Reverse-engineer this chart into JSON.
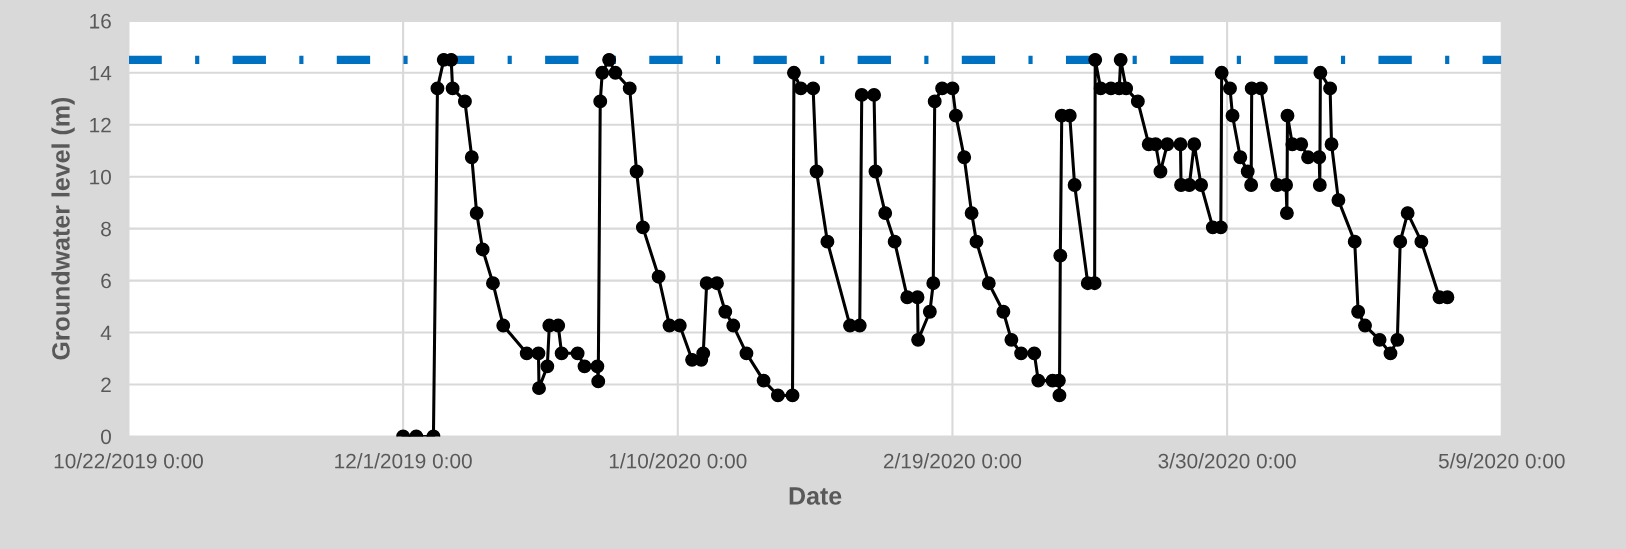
{
  "chart_data": {
    "type": "line",
    "xlabel": "Date",
    "ylabel": "Groundwater level (m)",
    "xlim": [
      "2019-10-22",
      "2020-05-09"
    ],
    "xticks": [
      {
        "value": "2019-10-22",
        "label": "10/22/2019 0:00"
      },
      {
        "value": "2019-12-01",
        "label": "12/1/2019 0:00"
      },
      {
        "value": "2020-01-10",
        "label": "1/10/2020 0:00"
      },
      {
        "value": "2020-02-19",
        "label": "2/19/2020 0:00"
      },
      {
        "value": "2020-03-30",
        "label": "3/30/2020 0:00"
      },
      {
        "value": "2020-05-09",
        "label": "5/9/2020 0:00"
      }
    ],
    "ylim": [
      0,
      16
    ],
    "yticks": [
      0,
      2,
      4,
      6,
      8,
      10,
      12,
      14,
      16
    ],
    "grid": true,
    "marker": "circle",
    "line_style": "solid",
    "ref_lines": [
      {
        "axis": "y",
        "value": 14.5,
        "label": null,
        "color": "#0070c0",
        "line_style": "dashdot"
      }
    ],
    "series": [
      {
        "color": "#000000",
        "x": [
          "2019-12-01T00:00",
          "2019-12-02T22:00",
          "2019-12-05T10:00",
          "2019-12-06T00:00",
          "2019-12-06T22:00",
          "2019-12-08T00:00",
          "2019-12-08T05:00",
          "2019-12-10T00:00",
          "2019-12-11T00:00",
          "2019-12-11T17:00",
          "2019-12-12T14:00",
          "2019-12-14T02:00",
          "2019-12-15T14:00",
          "2019-12-19T00:00",
          "2019-12-20T17:00",
          "2019-12-20T19:00",
          "2019-12-22T00:00",
          "2019-12-22T07:00",
          "2019-12-23T14:00",
          "2019-12-24T02:00",
          "2019-12-26T10:00",
          "2019-12-27T10:00",
          "2019-12-29T07:00",
          "2019-12-29T10:00",
          "2019-12-29T17:00",
          "2019-12-30T00:00",
          "2019-12-31T00:00",
          "2019-12-31T22:00",
          "2020-01-03T00:00",
          "2020-01-04T00:00",
          "2020-01-04T22:00",
          "2020-01-07T05:00",
          "2020-01-08T19:00",
          "2020-01-10T07:00",
          "2020-01-12T02:00",
          "2020-01-13T10:00",
          "2020-01-13T17:00",
          "2020-01-14T05:00",
          "2020-01-15T17:00",
          "2020-01-16T22:00",
          "2020-01-18T02:00",
          "2020-01-20T00:00",
          "2020-01-22T12:00",
          "2020-01-24T14:00",
          "2020-01-26T17:00",
          "2020-01-26T22:00",
          "2020-01-27T22:00",
          "2020-01-29T17:00",
          "2020-01-30T05:00",
          "2020-01-31T19:00",
          "2020-02-04T02:00",
          "2020-02-05T12:00",
          "2020-02-05T19:00",
          "2020-02-07T14:00",
          "2020-02-07T19:00",
          "2020-02-09T05:00",
          "2020-02-10T14:00",
          "2020-02-12T10:00",
          "2020-02-13T22:00",
          "2020-02-14T00:00",
          "2020-02-15T17:00",
          "2020-02-16T05:00",
          "2020-02-16T10:00",
          "2020-02-17T12:00",
          "2020-02-19T00:00",
          "2020-02-19T12:00",
          "2020-02-20T17:00",
          "2020-02-21T19:00",
          "2020-02-22T12:00",
          "2020-02-24T07:00",
          "2020-02-26T10:00",
          "2020-02-27T14:00",
          "2020-02-29T00:00",
          "2020-03-01T22:00",
          "2020-03-02T12:00",
          "2020-03-04T14:00",
          "2020-03-05T12:00",
          "2020-03-05T14:00",
          "2020-03-05T17:00",
          "2020-03-05T22:00",
          "2020-03-07T02:00",
          "2020-03-07T19:00",
          "2020-03-09T17:00",
          "2020-03-10T17:00",
          "2020-03-10T19:00",
          "2020-03-11T14:00",
          "2020-03-13T02:00",
          "2020-03-14T07:00",
          "2020-03-14T12:00",
          "2020-03-15T07:00",
          "2020-03-17T00:00",
          "2020-03-18T14:00",
          "2020-03-19T14:00",
          "2020-03-20T07:00",
          "2020-03-21T07:00",
          "2020-03-23T05:00",
          "2020-03-23T07:00",
          "2020-03-24T12:00",
          "2020-03-25T05:00",
          "2020-03-26T05:00",
          "2020-03-27T22:00",
          "2020-03-29T02:00",
          "2020-03-29T05:00",
          "2020-03-30T10:00",
          "2020-03-30T19:00",
          "2020-03-31T22:00",
          "2020-04-02T00:00",
          "2020-04-02T12:00",
          "2020-04-02T14:00",
          "2020-04-03T22:00",
          "2020-04-06T07:00",
          "2020-04-07T14:00",
          "2020-04-07T17:00",
          "2020-04-07T19:00",
          "2020-04-08T12:00",
          "2020-04-09T19:00",
          "2020-04-10T19:00",
          "2020-04-12T10:00",
          "2020-04-12T12:00",
          "2020-04-12T14:00",
          "2020-04-14T00:00",
          "2020-04-14T05:00",
          "2020-04-15T05:00",
          "2020-04-17T14:00",
          "2020-04-18T02:00",
          "2020-04-19T02:00",
          "2020-04-21T05:00",
          "2020-04-22T19:00",
          "2020-04-23T19:00",
          "2020-04-24T05:00",
          "2020-04-25T07:00",
          "2020-04-27T07:00",
          "2020-04-29T22:00",
          "2020-05-01T02:00"
        ],
        "values": [
          0,
          0,
          0,
          13.4,
          14.5,
          14.5,
          13.4,
          12.9,
          10.75,
          8.6,
          7.2,
          5.9,
          4.27,
          3.2,
          3.2,
          1.86,
          2.7,
          4.27,
          4.27,
          3.2,
          3.2,
          2.7,
          2.7,
          2.12,
          12.9,
          14.0,
          14.5,
          14.0,
          13.4,
          10.2,
          8.05,
          6.15,
          4.27,
          4.27,
          2.95,
          2.95,
          3.2,
          5.9,
          5.9,
          4.8,
          4.27,
          3.2,
          2.15,
          1.58,
          1.58,
          14.0,
          13.4,
          13.4,
          10.2,
          7.5,
          4.27,
          4.27,
          13.15,
          13.15,
          10.2,
          8.6,
          7.5,
          5.36,
          5.36,
          3.72,
          4.8,
          5.9,
          12.9,
          13.4,
          13.4,
          12.35,
          10.75,
          8.6,
          7.5,
          5.9,
          4.8,
          3.72,
          3.2,
          3.2,
          2.15,
          2.15,
          2.15,
          1.58,
          6.96,
          12.35,
          12.35,
          9.68,
          5.9,
          5.9,
          14.5,
          13.4,
          13.4,
          13.4,
          14.5,
          13.4,
          12.9,
          11.25,
          11.25,
          10.2,
          11.25,
          11.25,
          9.68,
          9.68,
          11.25,
          9.68,
          8.05,
          8.05,
          14.0,
          13.4,
          12.35,
          10.75,
          10.2,
          9.68,
          13.4,
          13.4,
          9.68,
          9.68,
          8.6,
          12.35,
          11.25,
          11.25,
          10.75,
          10.75,
          9.68,
          14.0,
          13.4,
          11.25,
          9.1,
          7.5,
          4.8,
          4.27,
          3.72,
          3.2,
          3.72,
          7.5,
          8.6,
          7.5,
          5.36,
          5.36
        ]
      }
    ]
  }
}
